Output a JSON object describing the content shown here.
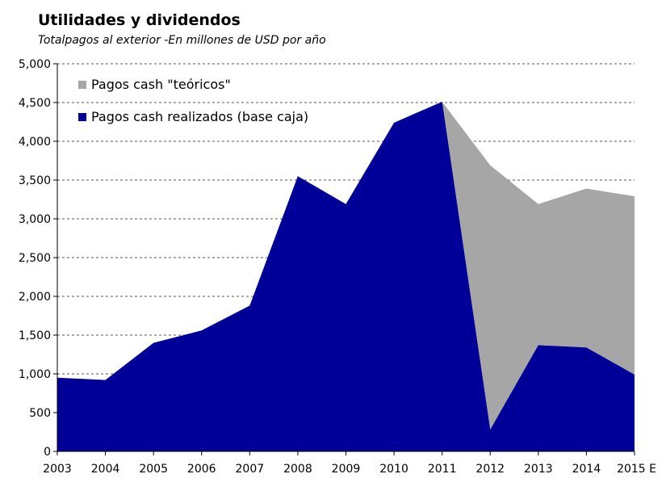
{
  "chart_data": {
    "type": "area",
    "title": "Utilidades y dividendos",
    "subtitle": "Totalpagos al exterior -En millones de USD por año",
    "categories": [
      "2003",
      "2004",
      "2005",
      "2006",
      "2007",
      "2008",
      "2009",
      "2010",
      "2011",
      "2012",
      "2013",
      "2014",
      "2015 E"
    ],
    "ylim": [
      0,
      5000
    ],
    "yticks": [
      "0",
      "500",
      "1,000",
      "1,500",
      "2,000",
      "2,500",
      "3,000",
      "3,500",
      "4,000",
      "4,500",
      "5,000"
    ],
    "ytick_values": [
      0,
      500,
      1000,
      1500,
      2000,
      2500,
      3000,
      3500,
      4000,
      4500,
      5000
    ],
    "grid": true,
    "legend_placement": "top-left",
    "series": [
      {
        "name": "Pagos cash \"teóricos\"",
        "color": "#a6a6a6",
        "values": [
          950,
          920,
          1400,
          1560,
          1880,
          3550,
          3190,
          4240,
          4510,
          3690,
          3190,
          3390,
          3290
        ]
      },
      {
        "name": "Pagos cash realizados (base caja)",
        "color": "#000099",
        "values": [
          950,
          920,
          1400,
          1560,
          1880,
          3550,
          3190,
          4240,
          4510,
          280,
          1370,
          1340,
          990
        ]
      }
    ]
  }
}
